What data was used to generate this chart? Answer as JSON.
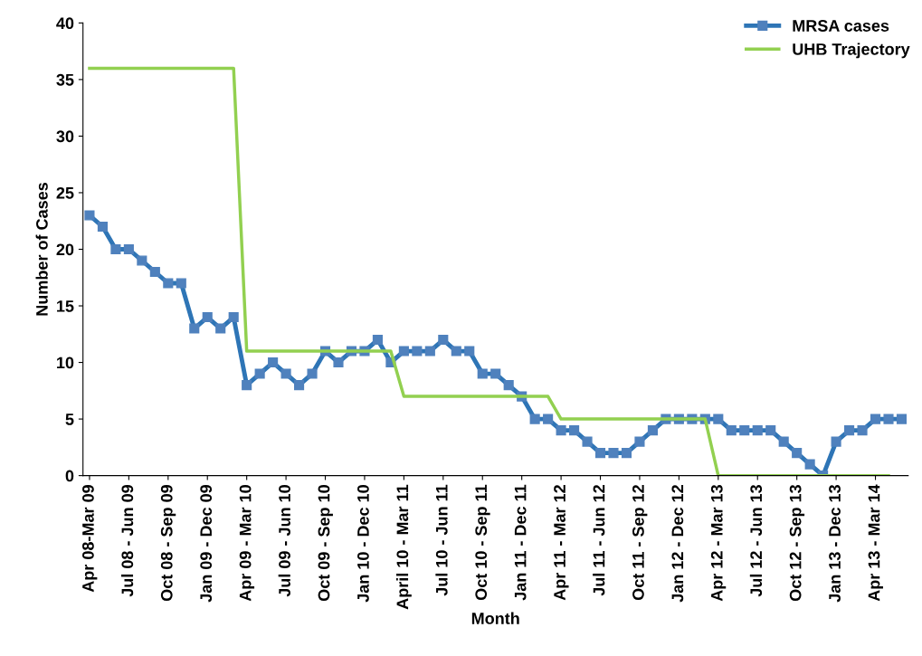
{
  "chart_data": {
    "type": "line",
    "xlabel": "Month",
    "ylabel": "Number of Cases",
    "categories": [
      "Apr 08-Mar 09",
      null,
      null,
      "Jul 08 - Jun 09",
      null,
      null,
      "Oct 08 - Sep 09",
      null,
      null,
      "Jan 09 - Dec 09",
      null,
      null,
      "Apr 09 - Mar 10",
      null,
      null,
      "Jul 09 - Jun 10",
      null,
      null,
      "Oct 09 - Sep 10",
      null,
      null,
      "Jan 10 - Dec 10",
      null,
      null,
      "April 10 - Mar 11",
      null,
      null,
      "Jul 10 - Jun 11",
      null,
      null,
      "Oct 10 - Sep 11",
      null,
      null,
      "Jan 11 - Dec 11",
      null,
      null,
      "Apr 11 - Mar 12",
      null,
      null,
      "Jul 11 - Jun 12",
      null,
      null,
      "Oct 11 - Sep 12",
      null,
      null,
      "Jan 12 - Dec 12",
      null,
      null,
      "Apr 12 - Mar 13",
      null,
      null,
      "Jul 12 - Jun 13",
      null,
      null,
      "Oct 12 - Sep 13",
      null,
      null,
      "Jan 13 - Dec 13",
      null,
      null,
      "Apr 13 - Mar 14",
      null,
      null
    ],
    "series": [
      {
        "name": "MRSA cases",
        "color": "#2e75b6",
        "marker": "square",
        "values": [
          23,
          22,
          20,
          20,
          19,
          18,
          17,
          17,
          13,
          14,
          13,
          14,
          8,
          9,
          10,
          9,
          8,
          9,
          11,
          10,
          11,
          11,
          12,
          10,
          11,
          11,
          11,
          12,
          11,
          11,
          9,
          9,
          8,
          7,
          5,
          5,
          4,
          4,
          3,
          2,
          2,
          2,
          3,
          4,
          5,
          5,
          5,
          5,
          5,
          4,
          4,
          4,
          4,
          3,
          2,
          1,
          0,
          3,
          4,
          4,
          5,
          5,
          5
        ]
      },
      {
        "name": "UHB Trajectory",
        "color": "#92d050",
        "marker": "none",
        "values": [
          36,
          36,
          36,
          36,
          36,
          36,
          36,
          36,
          36,
          36,
          36,
          36,
          11,
          11,
          11,
          11,
          11,
          11,
          11,
          11,
          11,
          11,
          11,
          11,
          7,
          7,
          7,
          7,
          7,
          7,
          7,
          7,
          7,
          7,
          7,
          7,
          5,
          5,
          5,
          5,
          5,
          5,
          5,
          5,
          5,
          5,
          5,
          5,
          0,
          0,
          0,
          0,
          0,
          0,
          0,
          0,
          0,
          0,
          0,
          0,
          0,
          0,
          null
        ]
      }
    ],
    "ylim": [
      0,
      40
    ],
    "yticks": [
      0,
      5,
      10,
      15,
      20,
      25,
      30,
      35,
      40
    ],
    "grid": false,
    "legend": "top right"
  }
}
